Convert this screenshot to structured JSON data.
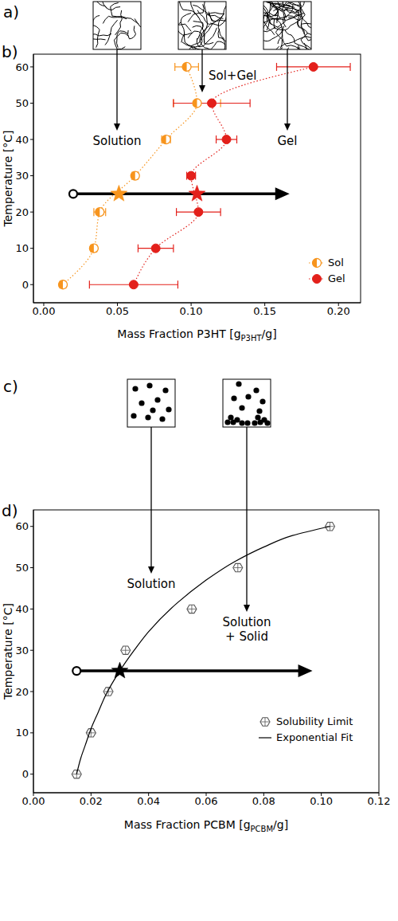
{
  "schematics": [
    {
      "label": "a)"
    },
    {
      "label": "c)"
    }
  ],
  "chart_data": [
    {
      "type": "scatter",
      "label": "b)",
      "xlabel": {
        "text": "Mass Fraction P3HT [g",
        "sub": "P3HT",
        "after": "/g]"
      },
      "ylabel": "Temperature [°C]",
      "xlim": [
        -0.007,
        0.215
      ],
      "xticks": [
        {
          "value": 0,
          "label": "0.00"
        },
        {
          "value": 0.05,
          "label": "0.05"
        },
        {
          "value": 0.1,
          "label": "0.10"
        },
        {
          "value": 0.15,
          "label": "0.15"
        },
        {
          "value": 0.2,
          "label": "0.20"
        }
      ],
      "ylim": [
        -5,
        63.5
      ],
      "yticks": [
        0,
        10,
        20,
        30,
        40,
        50,
        60
      ],
      "legend": "lower right",
      "annotations": [
        "Solution",
        "Sol+Gel",
        "Gel"
      ],
      "series": [
        {
          "name": "Sol",
          "color": "#f7941d",
          "marker": "half_circle",
          "line_style": "dotted",
          "x": [
            0.013,
            0.034,
            0.038,
            0.062,
            0.083,
            0.104,
            0.097
          ],
          "values": [
            0,
            10,
            20,
            30,
            40,
            50,
            60
          ],
          "xerr": [
            0.002,
            0.002,
            0.004,
            0.002,
            0.003,
            0.016,
            0.008
          ]
        },
        {
          "name": "Gel",
          "color": "#e3201b",
          "marker": "circle",
          "line_style": "dotted",
          "x": [
            0.061,
            0.076,
            0.105,
            0.1,
            0.124,
            0.114,
            0.183
          ],
          "values": [
            0,
            10,
            20,
            30,
            40,
            50,
            60
          ],
          "xerr": [
            0.03,
            0.012,
            0.015,
            0.003,
            0.007,
            0.026,
            0.025
          ]
        }
      ],
      "markers": [
        {
          "x": 0.051,
          "y": 25,
          "color": "#f7941d",
          "marker": "star"
        },
        {
          "x": 0.104,
          "y": 25,
          "color": "#e3201b",
          "marker": "star"
        }
      ],
      "arrow": {
        "x": [
          0.02,
          0.163
        ],
        "y": [
          25,
          25
        ]
      }
    },
    {
      "type": "scatter",
      "label": "d)",
      "xlabel": {
        "text": "Mass Fraction PCBM [g",
        "sub": "PCBM",
        "after": "/g]"
      },
      "ylabel": "Temperature [°C]",
      "xlim": [
        0,
        0.12
      ],
      "xticks": [
        {
          "value": 0,
          "label": "0.00"
        },
        {
          "value": 0.02,
          "label": "0.02"
        },
        {
          "value": 0.04,
          "label": "0.04"
        },
        {
          "value": 0.06,
          "label": "0.06"
        },
        {
          "value": 0.08,
          "label": "0.08"
        },
        {
          "value": 0.1,
          "label": "0.10"
        },
        {
          "value": 0.12,
          "label": "0.12"
        }
      ],
      "ylim": [
        -4.5,
        64
      ],
      "yticks": [
        0,
        10,
        20,
        30,
        40,
        50,
        60
      ],
      "legend": "lower right",
      "annotations": [
        "Solution",
        "Solution + Solid"
      ],
      "series": [
        {
          "name": "Solubility Limit",
          "color": "#555555",
          "marker": "hexagon",
          "x": [
            0.015,
            0.02,
            0.026,
            0.032,
            0.055,
            0.071,
            0.103
          ],
          "values": [
            0,
            10,
            20,
            30,
            40,
            50,
            60
          ]
        },
        {
          "name": "Exponential Fit",
          "type": "line",
          "color": "#000000",
          "line_style": "solid",
          "x": [
            0.015,
            0.0165,
            0.018,
            0.02,
            0.0225,
            0.025,
            0.03,
            0.035,
            0.04,
            0.05,
            0.06,
            0.07,
            0.08,
            0.09,
            0.103
          ],
          "values": [
            0,
            4,
            7,
            11,
            15,
            19,
            25,
            30,
            34.5,
            41.5,
            47,
            51.5,
            55,
            57.8,
            60
          ]
        }
      ],
      "markers": [
        {
          "x": 0.03,
          "y": 25,
          "color": "#000000",
          "marker": "star"
        }
      ],
      "arrow": {
        "x": [
          0.015,
          0.095
        ],
        "y": [
          25,
          25
        ]
      }
    }
  ]
}
